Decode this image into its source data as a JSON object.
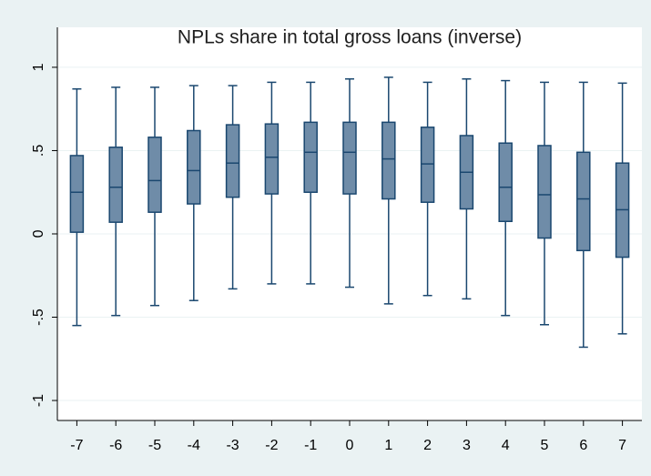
{
  "chart_data": {
    "type": "box",
    "title": "NPLs share in total gross loans (inverse)",
    "categories": [
      "-7",
      "-6",
      "-5",
      "-4",
      "-3",
      "-2",
      "-1",
      "0",
      "1",
      "2",
      "3",
      "4",
      "5",
      "6",
      "7"
    ],
    "min": [
      -0.55,
      -0.49,
      -0.43,
      -0.4,
      -0.33,
      -0.3,
      -0.3,
      -0.32,
      -0.42,
      -0.37,
      -0.39,
      -0.49,
      -0.545,
      -0.68,
      -0.6
    ],
    "q1": [
      0.01,
      0.07,
      0.13,
      0.18,
      0.22,
      0.24,
      0.25,
      0.24,
      0.21,
      0.19,
      0.15,
      0.075,
      -0.025,
      -0.1,
      -0.14
    ],
    "median": [
      0.25,
      0.28,
      0.32,
      0.38,
      0.425,
      0.46,
      0.49,
      0.49,
      0.45,
      0.42,
      0.37,
      0.28,
      0.235,
      0.21,
      0.145
    ],
    "q3": [
      0.47,
      0.52,
      0.58,
      0.62,
      0.655,
      0.66,
      0.67,
      0.67,
      0.67,
      0.64,
      0.59,
      0.545,
      0.53,
      0.49,
      0.425
    ],
    "max": [
      0.87,
      0.88,
      0.88,
      0.89,
      0.89,
      0.91,
      0.91,
      0.93,
      0.94,
      0.91,
      0.93,
      0.92,
      0.91,
      0.91,
      0.905
    ],
    "ylim": [
      -1.12,
      1.24
    ],
    "yticks": [
      -1,
      {
        "value": -0.5,
        "label": "-.5"
      },
      0,
      {
        "value": 0.5,
        "label": ".5"
      },
      1
    ],
    "grid": true,
    "color": "#6f8ca8",
    "edge_color": "#1a476f"
  }
}
